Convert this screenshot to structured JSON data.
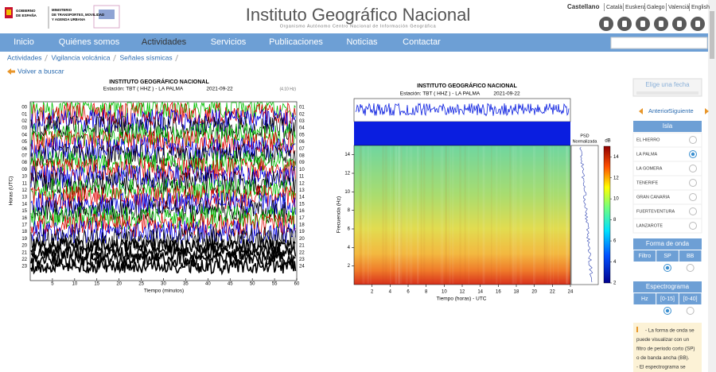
{
  "header": {
    "gov_lines": [
      "GOBIERNO",
      "DE ESPAÑA"
    ],
    "ministry_lines": [
      "MINISTERIO",
      "DE TRANSPORTES, MOVILIDAD",
      "Y AGENDA URBANA"
    ],
    "title": "Instituto Geográfico Nacional",
    "subtitle": "Organismo Autónomo Centro Nacional de Información Geográfica",
    "languages": [
      "Castellano",
      "Català",
      "Euskera",
      "Galego",
      "Valencià",
      "English"
    ]
  },
  "nav": {
    "items": [
      "Inicio",
      "Quiénes somos",
      "Actividades",
      "Servicios",
      "Publicaciones",
      "Noticias",
      "Contactar"
    ],
    "active_index": 2
  },
  "breadcrumb": [
    "Actividades",
    "Vigilancia volcánica",
    "Señales sísmicas"
  ],
  "back_link": "Volver a buscar",
  "seismogram": {
    "title": "INSTITUTO GEOGRÁFICO NACIONAL",
    "station": "Estación: TBT ( HHZ ) - LA PALMA",
    "date": "2021-09-22",
    "note": "(4.10 Hz)",
    "y_label": "Horas (UTC)",
    "x_label": "Tiempo (minutos)",
    "hours_left": [
      "00",
      "01",
      "02",
      "03",
      "04",
      "05",
      "06",
      "07",
      "08",
      "09",
      "10",
      "11",
      "12",
      "13",
      "14",
      "15",
      "16",
      "17",
      "18",
      "19",
      "20",
      "21",
      "22",
      "23"
    ],
    "hours_right": [
      "01",
      "02",
      "03",
      "04",
      "05",
      "06",
      "07",
      "08",
      "09",
      "10",
      "11",
      "12",
      "13",
      "14",
      "15",
      "16",
      "17",
      "18",
      "19",
      "20",
      "21",
      "22",
      "23",
      "24"
    ],
    "xlim": [
      0,
      60
    ],
    "xticks": [
      5,
      10,
      15,
      20,
      25,
      30,
      35,
      40,
      45,
      50,
      55,
      60
    ]
  },
  "spectrogram": {
    "title": "INSTITUTO GEOGRÁFICO NACIONAL",
    "station": "Estación: TBT ( HHZ ) - LA PALMA",
    "date": "2021-09-22",
    "psd_label": [
      "PSD",
      "Normalizada"
    ],
    "cbar_unit": "dB",
    "y_label": "Frecuencia (Hz)",
    "x_label": "Tiempo (horas) - UTC",
    "xlim": [
      0,
      24
    ],
    "xticks": [
      2,
      4,
      6,
      8,
      10,
      12,
      14,
      16,
      18,
      20,
      22,
      24
    ],
    "ylim": [
      0,
      15
    ],
    "yticks": [
      2,
      4,
      6,
      8,
      10,
      12,
      14
    ],
    "clim": [
      2,
      15
    ],
    "cticks": [
      2,
      4,
      6,
      8,
      10,
      12,
      14
    ]
  },
  "sidebar": {
    "date_placeholder": "Elige una fecha",
    "prev": "Anterior",
    "next": "Siguiente",
    "island_header": "Isla",
    "islands": [
      "EL HIERRO",
      "LA PALMA",
      "LA GOMERA",
      "TENERIFE",
      "GRAN CANARIA",
      "FUERTEVENTURA",
      "LANZAROTE"
    ],
    "selected_island": 1,
    "waveform_header": "Forma de onda",
    "waveform_columns": [
      "Filtro",
      "SP",
      "BB"
    ],
    "waveform_selected": 1,
    "spectro_header": "Espectrograma",
    "spectro_columns": [
      "Hz",
      "[0-15]",
      "[0-40]"
    ],
    "spectro_selected": 1,
    "info": [
      "- La forma de onda se",
      "puede visualizar con un",
      "filtro de periodo corto (SP)",
      "o de banda ancha (BB).",
      "- El espectrograma se"
    ]
  }
}
